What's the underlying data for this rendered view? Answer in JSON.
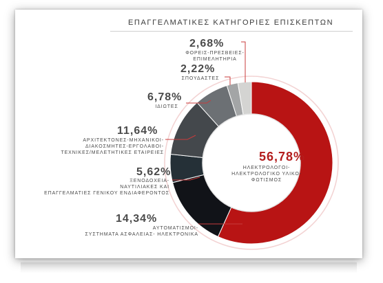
{
  "chart_data": {
    "type": "pie",
    "title": "ΕΠΑΓΓΕΛΜΑΤΙΚΕΣ ΚΑΤΗΓΟΡΙΕΣ ΕΠΙΣΚΕΠΤΩΝ",
    "slices": [
      {
        "value": 56.78,
        "value_label": "56,78%",
        "label_lines": [
          "ΗΛΕΚΤΡΟΛΟΓΟΙ-",
          "ΗΛΕΚΤΡΟΛΟΓΙΚΟ ΥΛΙΚΟ-",
          "ΦΩΤΙΣΜΟΣ"
        ],
        "color": "#b81414"
      },
      {
        "value": 14.34,
        "value_label": "14,34%",
        "label_lines": [
          "ΑΥΤΟΜΑΤΙΣΜΟΙ-",
          "ΣΥΣΤΗΜΑΤΑ ΑΣΦΑΛΕΙΑΣ- ΗΛΕΚΤΡΟΝΙΚΑ"
        ],
        "color": "#111318"
      },
      {
        "value": 5.62,
        "value_label": "5,62%",
        "label_lines": [
          "ΞΕΝΟΔΟΧΕΙΑ-",
          "ΝΑΥΤΙΛΙΑΚΕΣ ΚΑΙ",
          "ΕΠΑΓΓΕΛΜΑΤΙΕΣ ΓΕΝΙΚΟΥ ΕΝΔΙΑΦΕΡΟΝΤΟΣ"
        ],
        "color": "#253037"
      },
      {
        "value": 11.64,
        "value_label": "11,64%",
        "label_lines": [
          "ΑΡΧΙΤΕΚΤΟΝΕΣ-ΜΗΧΑΝΙΚΟΙ-",
          "ΔΙΑΚΟΣΜΗΤΕΣ-ΕΡΓΟΛΑΒΟΙ-",
          "ΤΕΧΝΙΚΕΣ/ΜΕΛΕΤΗΤΙΚΕΣ ΕΤΑΙΡΕΙΕΣ"
        ],
        "color": "#44484c"
      },
      {
        "value": 6.78,
        "value_label": "6,78%",
        "label_lines": [
          "ΙΔΙΩΤΕΣ"
        ],
        "color": "#6c7074"
      },
      {
        "value": 2.22,
        "value_label": "2,22%",
        "label_lines": [
          "ΣΠΟΥΔΑΣΤΕΣ"
        ],
        "color": "#a3a5a6"
      },
      {
        "value": 2.68,
        "value_label": "2,68%",
        "label_lines": [
          "ΦΟΡΕΙΣ-ΠΡΕΣΒΕΙΕΣ-",
          "ΕΠΙΜΕΛΗΤΗΡΙΑ"
        ],
        "color": "#d4d4d2"
      }
    ],
    "legend": "none"
  }
}
